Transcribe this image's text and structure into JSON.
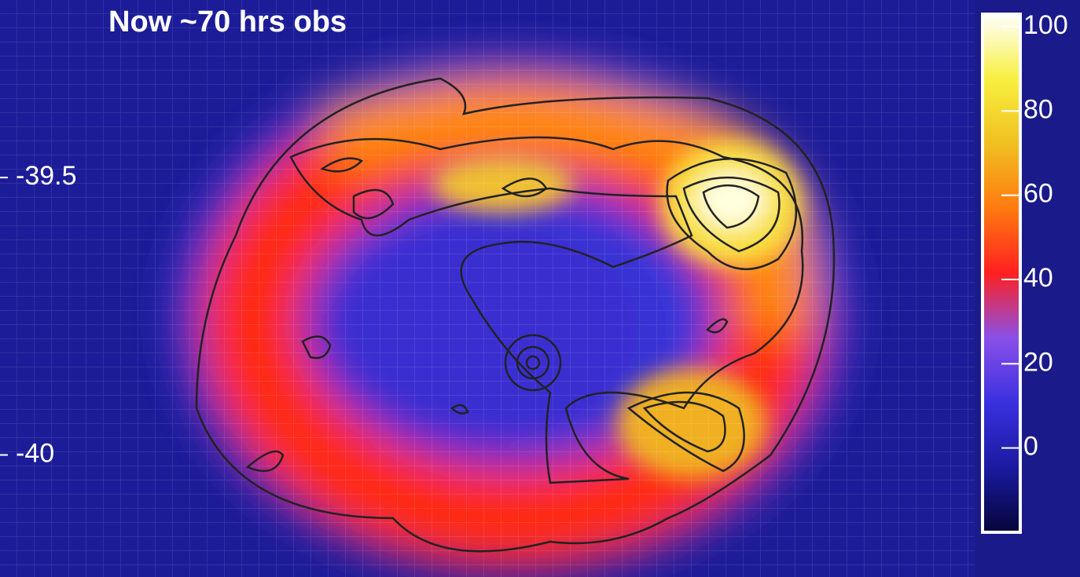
{
  "chart_data": {
    "type": "heatmap",
    "title": "Now ~70 hrs obs",
    "ylim": [
      -40.22,
      -39.18
    ],
    "yticks": [
      -40,
      -39.5
    ],
    "clim": [
      -20,
      103
    ],
    "cticks": [
      0,
      20,
      40,
      60,
      80,
      100
    ],
    "colormap": [
      "#05053a",
      "#1a1aa0",
      "#3a30e0",
      "#8a50e8",
      "#ff2020",
      "#ff7a10",
      "#f0c020",
      "#f8f040",
      "#ffffff"
    ]
  }
}
